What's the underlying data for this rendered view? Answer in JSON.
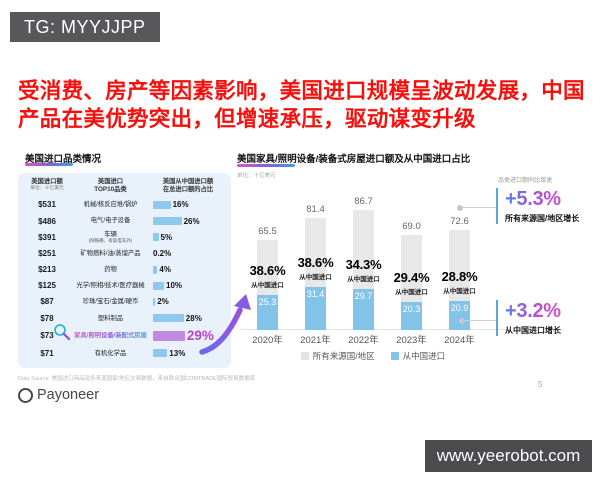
{
  "header": {
    "tg_label": "TG: MYYJJPP"
  },
  "title": {
    "text": "受消费、房产等因素影响，美国进口规模呈波动发展，中国产品在美优势突出，但增速承压，驱动谋变升级"
  },
  "left_panel": {
    "title": "美国进口品类情况",
    "columns": {
      "amount": {
        "label": "美国进口额",
        "sub": "单位：十亿美元"
      },
      "category": {
        "line1": "美国进口",
        "line2": "TOP10品类"
      },
      "share": {
        "line1": "美国从中国进口额",
        "line2": "在总进口额的占比"
      }
    },
    "rows": [
      {
        "amount": "$531",
        "category": "机械/核反应堆/锅炉",
        "pct": "16%",
        "value": 16
      },
      {
        "amount": "$486",
        "category": "电气/电子设备",
        "pct": "26%",
        "value": 26
      },
      {
        "amount": "$391",
        "category": "车辆",
        "sub": "(除铁路、有轨电车外)",
        "pct": "5%",
        "value": 5
      },
      {
        "amount": "$251",
        "category": "矿物燃料/油/蒸馏产品",
        "pct": "0.2%",
        "value": 0.2
      },
      {
        "amount": "$213",
        "category": "药物",
        "pct": "4%",
        "value": 4
      },
      {
        "amount": "$125",
        "category": "光学/照相/技术/医疗器械",
        "pct": "10%",
        "value": 10
      },
      {
        "amount": "$87",
        "category": "珍珠/宝石/金属/硬币",
        "pct": "2%",
        "value": 2
      },
      {
        "amount": "$78",
        "category": "塑料制品",
        "pct": "28%",
        "value": 28
      },
      {
        "amount": "$73",
        "category": "家具/照明设备/装配式房屋",
        "pct": "29%",
        "value": 29,
        "highlight": true
      },
      {
        "amount": "$71",
        "category": "有机化学品",
        "pct": "13%",
        "value": 13
      }
    ]
  },
  "chart": {
    "title": "美国家具/照明设备/装备式房屋进口额及从中国进口占比",
    "unit": "单位：十亿美元"
  },
  "growth": {
    "header": "品类进口额同比增速",
    "items": [
      {
        "value": "+5.3%",
        "label": "所有来源国/地区增长"
      },
      {
        "value": "+3.2%",
        "label": "从中国进口增长"
      }
    ]
  },
  "footer": {
    "source": "Data Source: 美国进口商品及各来源国家/地区交易数据，来自联合国COMTRADE国际贸易数据库",
    "brand": "Payoneer",
    "page": "5"
  },
  "url_bar": {
    "text": "www.yeerobot.com"
  },
  "chart_data": [
    {
      "type": "bar",
      "orientation": "horizontal",
      "title": "美国进口品类情况",
      "unit": "十亿美元",
      "categories": [
        "机械/核反应堆/锅炉",
        "电气/电子设备",
        "车辆",
        "矿物燃料/油/蒸馏产品",
        "药物",
        "光学/照相/技术/医疗器械",
        "珍珠/宝石/金属/硬币",
        "塑料制品",
        "家具/照明设备/装配式房屋",
        "有机化学品"
      ],
      "amounts_billion_usd": [
        531,
        486,
        391,
        251,
        213,
        125,
        87,
        78,
        73,
        71
      ],
      "china_share_pct": [
        16,
        26,
        5,
        0.2,
        4,
        10,
        2,
        28,
        29,
        13
      ],
      "highlight_index": 8
    },
    {
      "type": "bar",
      "title": "美国家具/照明设备/装备式房屋进口额及从中国进口占比",
      "unit": "十亿美元",
      "categories": [
        "2020年",
        "2021年",
        "2022年",
        "2023年",
        "2024年"
      ],
      "series": [
        {
          "name": "所有来源国/地区",
          "values": [
            65.5,
            81.4,
            86.7,
            69.0,
            72.6
          ]
        },
        {
          "name": "从中国进口",
          "values": [
            25.3,
            31.4,
            29.7,
            20.3,
            20.9
          ]
        }
      ],
      "share_labels": [
        "38.6%",
        "38.6%",
        "34.3%",
        "29.4%",
        "28.8%"
      ],
      "share_sub_label": "从中国进口",
      "ylim": [
        0,
        90
      ],
      "grid": false,
      "legend_position": "bottom",
      "annotations": [
        "+5.3% 所有来源国/地区增长",
        "+3.2% 从中国进口增长"
      ]
    }
  ]
}
